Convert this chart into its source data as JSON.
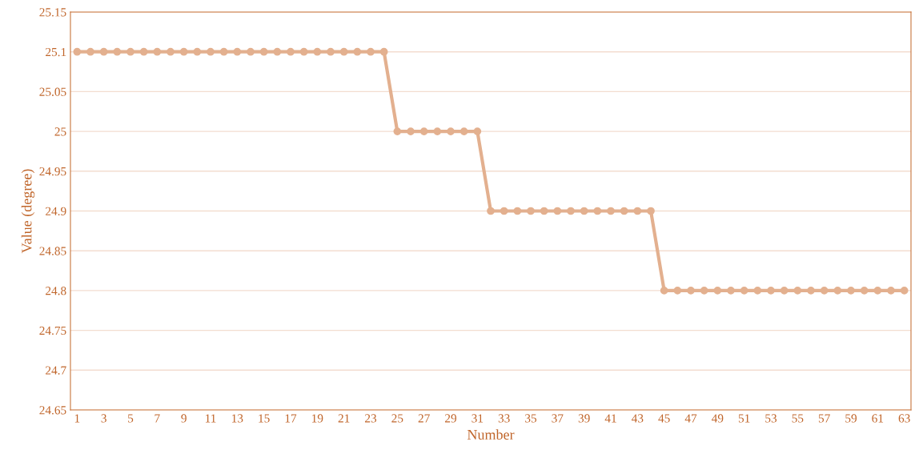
{
  "chart_data": {
    "type": "line",
    "xlabel": "Number",
    "ylabel": "Value (degree)",
    "categories": [
      "1",
      null,
      "3",
      null,
      "5",
      null,
      "7",
      null,
      "9",
      null,
      "11",
      null,
      "13",
      null,
      "15",
      null,
      "17",
      null,
      "19",
      null,
      "21",
      null,
      "23",
      null,
      "25",
      null,
      "27",
      null,
      "29",
      null,
      "31",
      null,
      "33",
      null,
      "35",
      null,
      "37",
      null,
      "39",
      null,
      "41",
      null,
      "43",
      null,
      "45",
      null,
      "47",
      null,
      "49",
      null,
      "51",
      null,
      "53",
      null,
      "55",
      null,
      "57",
      null,
      "59",
      null,
      "61",
      null,
      "63"
    ],
    "series": [
      {
        "color": "#e3b08f",
        "values": [
          25.1,
          25.1,
          25.1,
          25.1,
          25.1,
          25.1,
          25.1,
          25.1,
          25.1,
          25.1,
          25.1,
          25.1,
          25.1,
          25.1,
          25.1,
          25.1,
          25.1,
          25.1,
          25.1,
          25.1,
          25.1,
          25.1,
          25.1,
          25.1,
          25.0,
          25.0,
          25.0,
          25.0,
          25.0,
          25.0,
          25.0,
          24.9,
          24.9,
          24.9,
          24.9,
          24.9,
          24.9,
          24.9,
          24.9,
          24.9,
          24.9,
          24.9,
          24.9,
          24.9,
          24.8,
          24.8,
          24.8,
          24.8,
          24.8,
          24.8,
          24.8,
          24.8,
          24.8,
          24.8,
          24.8,
          24.8,
          24.8,
          24.8,
          24.8,
          24.8,
          24.8,
          24.8,
          24.8
        ]
      }
    ],
    "ylim": [
      24.65,
      25.15
    ],
    "yticks": [
      24.65,
      24.7,
      24.75,
      24.8,
      24.85,
      24.9,
      24.95,
      25,
      25.05,
      25.1,
      25.15
    ],
    "grid": "y",
    "marker": "circle",
    "line_style": "solid",
    "legend": false
  }
}
